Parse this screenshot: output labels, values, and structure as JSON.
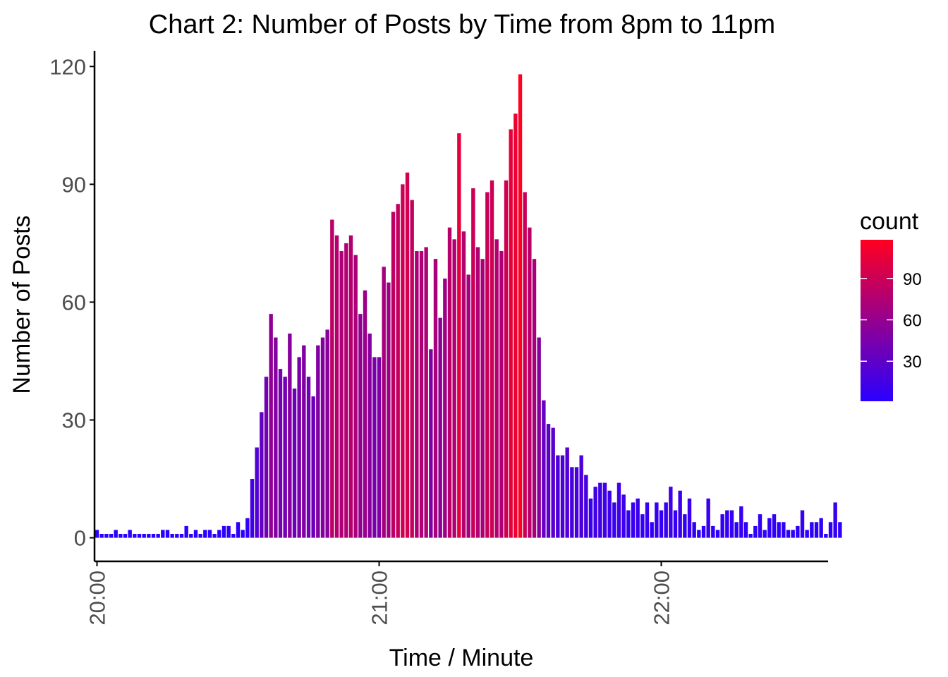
{
  "chart_data": {
    "type": "bar",
    "title": "Chart 2: Number of Posts by Time from 8pm to 11pm",
    "xlabel": "Time / Minute",
    "ylabel": "Number of Posts",
    "x_unit": "minute",
    "x_start": "20:00",
    "x_ticks": [
      "20:00",
      "21:00",
      "22:00"
    ],
    "y_ticks": [
      0,
      30,
      60,
      90,
      120
    ],
    "ylim": [
      -6,
      124
    ],
    "grid": false,
    "legend": {
      "title": "count",
      "placement": "right",
      "type": "colorbar",
      "ticks": [
        30,
        60,
        90
      ],
      "low_color": "#2a00ff",
      "high_color": "#ff0020",
      "range": [
        1,
        118
      ]
    },
    "values": [
      2,
      1,
      1,
      1,
      2,
      1,
      1,
      2,
      1,
      1,
      1,
      1,
      1,
      1,
      2,
      2,
      1,
      1,
      1,
      3,
      1,
      2,
      1,
      2,
      2,
      1,
      2,
      3,
      3,
      1,
      4,
      2,
      5,
      15,
      23,
      32,
      41,
      57,
      51,
      43,
      41,
      52,
      38,
      46,
      49,
      41,
      36,
      49,
      51,
      53,
      81,
      77,
      73,
      75,
      77,
      72,
      57,
      63,
      52,
      46,
      46,
      69,
      65,
      83,
      85,
      90,
      93,
      86,
      73,
      73,
      74,
      48,
      71,
      56,
      66,
      79,
      76,
      103,
      78,
      67,
      89,
      74,
      71,
      88,
      91,
      76,
      73,
      91,
      104,
      108,
      118,
      88,
      79,
      71,
      51,
      35,
      29,
      28,
      21,
      21,
      23,
      18,
      18,
      21,
      16,
      10,
      13,
      14,
      14,
      12,
      9,
      14,
      11,
      7,
      9,
      10,
      6,
      9,
      4,
      9,
      7,
      9,
      13,
      7,
      12,
      6,
      10,
      4,
      2,
      3,
      10,
      3,
      2,
      6,
      7,
      7,
      4,
      8,
      4,
      1,
      3,
      6,
      2,
      5,
      6,
      4,
      4,
      2,
      2,
      3,
      7,
      2,
      4,
      4,
      5,
      1,
      4,
      9,
      4
    ]
  }
}
